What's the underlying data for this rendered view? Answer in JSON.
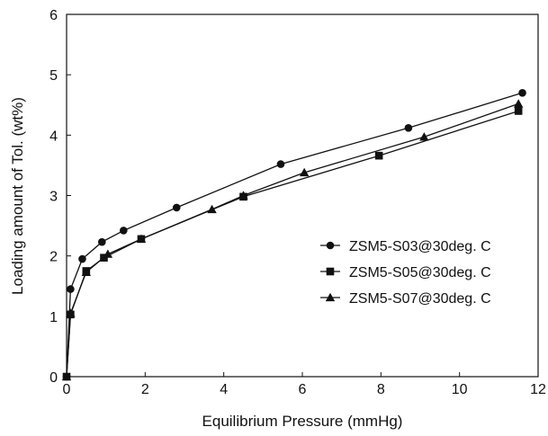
{
  "chart_data": {
    "type": "line",
    "title": "",
    "xlabel": "Equilibrium Pressure (mmHg)",
    "ylabel": "Loading amount of Tol. (wt%)",
    "xlim": [
      0,
      12
    ],
    "ylim": [
      0,
      6
    ],
    "xticks": [
      "0",
      "2",
      "4",
      "6",
      "8",
      "10",
      "12"
    ],
    "yticks": [
      "0",
      "1",
      "2",
      "3",
      "4",
      "5",
      "6"
    ],
    "grid": false,
    "legend_position": "right",
    "line_color": "#111111",
    "series": [
      {
        "name": "ZSM5-S03@30deg. C",
        "marker": "circle",
        "x": [
          0.0,
          0.1,
          0.4,
          0.9,
          1.45,
          2.8,
          5.45,
          8.7,
          11.6
        ],
        "y": [
          0.0,
          1.45,
          1.95,
          2.23,
          2.42,
          2.8,
          3.52,
          4.12,
          4.7
        ]
      },
      {
        "name": "ZSM5-S05@30deg. C",
        "marker": "square",
        "x": [
          0.0,
          0.1,
          0.5,
          0.95,
          1.9,
          4.5,
          7.95,
          11.5
        ],
        "y": [
          0.0,
          1.03,
          1.75,
          1.97,
          2.28,
          2.98,
          3.66,
          4.4
        ]
      },
      {
        "name": "ZSM5-S07@30deg. C",
        "marker": "triangle",
        "x": [
          0.0,
          0.1,
          0.5,
          1.05,
          1.9,
          3.7,
          4.5,
          6.05,
          9.1,
          11.5
        ],
        "y": [
          0.0,
          1.05,
          1.73,
          2.03,
          2.28,
          2.77,
          3.0,
          3.38,
          3.97,
          4.52
        ]
      }
    ]
  }
}
